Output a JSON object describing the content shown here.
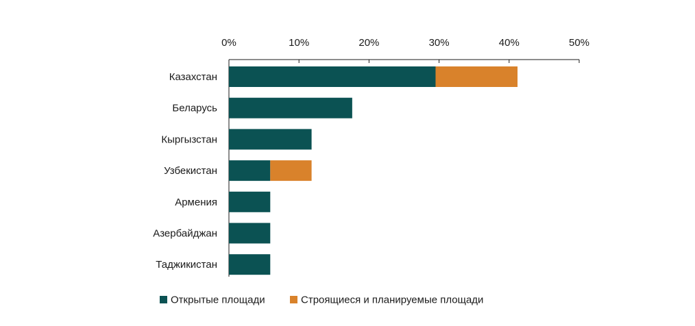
{
  "chart_data": {
    "type": "bar",
    "orientation": "horizontal",
    "stacked": true,
    "categories": [
      "Казахстан",
      "Беларусь",
      "Кыргызстан",
      "Узбекистан",
      "Армения",
      "Азербайджан",
      "Таджикистан"
    ],
    "series": [
      {
        "name": "Открытые площади",
        "color": "#0b5253",
        "values": [
          29.5,
          17.6,
          11.8,
          5.9,
          5.9,
          5.9,
          5.9
        ]
      },
      {
        "name": "Строящиеся и планируемые площади",
        "color": "#d9822b",
        "values": [
          11.7,
          0,
          0,
          5.9,
          0,
          0,
          0
        ]
      }
    ],
    "x_ticks": [
      "0%",
      "10%",
      "20%",
      "30%",
      "40%",
      "50%"
    ],
    "xlim": [
      0,
      50
    ],
    "axis_position": "top",
    "grid": false,
    "legend_position": "bottom"
  }
}
